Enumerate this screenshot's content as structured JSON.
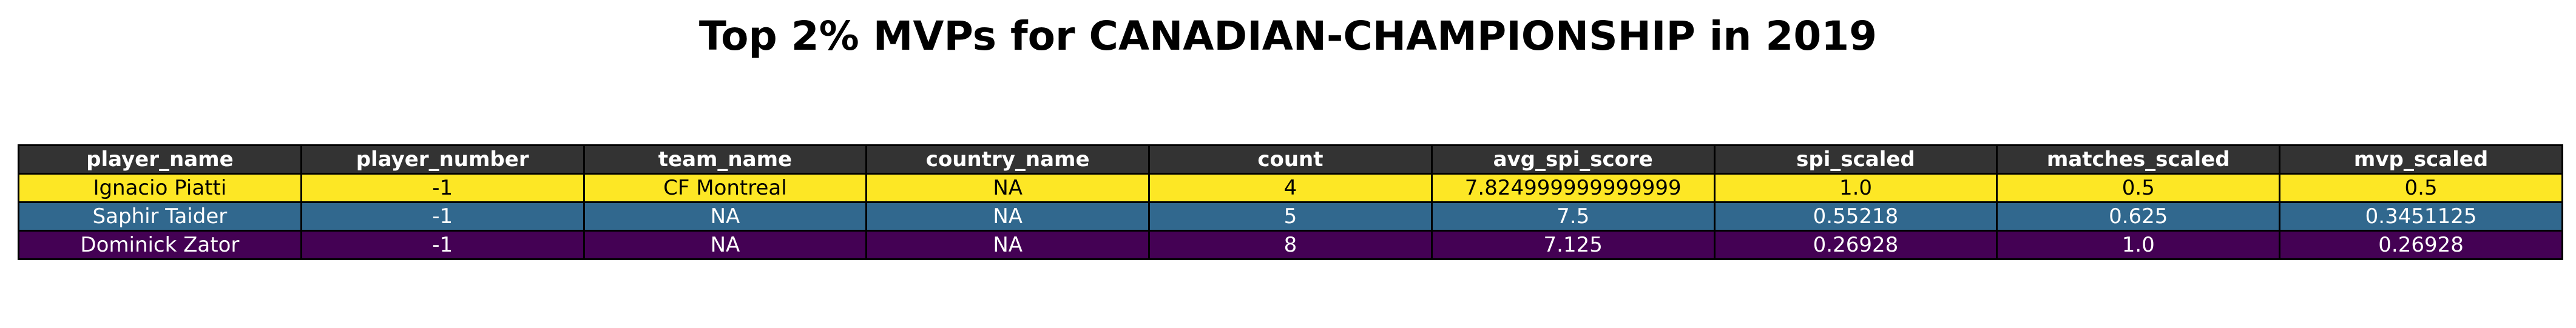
{
  "chart_data": {
    "type": "table",
    "title": "Top 2% MVPs for CANADIAN-CHAMPIONSHIP in 2019",
    "columns": [
      "player_name",
      "player_number",
      "team_name",
      "country_name",
      "count",
      "avg_spi_score",
      "spi_scaled",
      "matches_scaled",
      "mvp_scaled"
    ],
    "rows": [
      {
        "cells": [
          "Ignacio Piatti",
          "-1",
          "CF Montreal",
          "NA",
          "4",
          "7.824999999999999",
          "1.0",
          "0.5",
          "0.5"
        ],
        "bg": "#fde725",
        "fg": "#000000"
      },
      {
        "cells": [
          "Saphir Taider",
          "-1",
          "NA",
          "NA",
          "5",
          "7.5",
          "0.55218",
          "0.625",
          "0.3451125"
        ],
        "bg": "#31688e",
        "fg": "#ffffff"
      },
      {
        "cells": [
          "Dominick Zator",
          "-1",
          "NA",
          "NA",
          "8",
          "7.125",
          "0.26928",
          "1.0",
          "0.26928"
        ],
        "bg": "#440154",
        "fg": "#ffffff"
      }
    ],
    "header_bg": "#333333",
    "header_fg": "#ffffff"
  }
}
